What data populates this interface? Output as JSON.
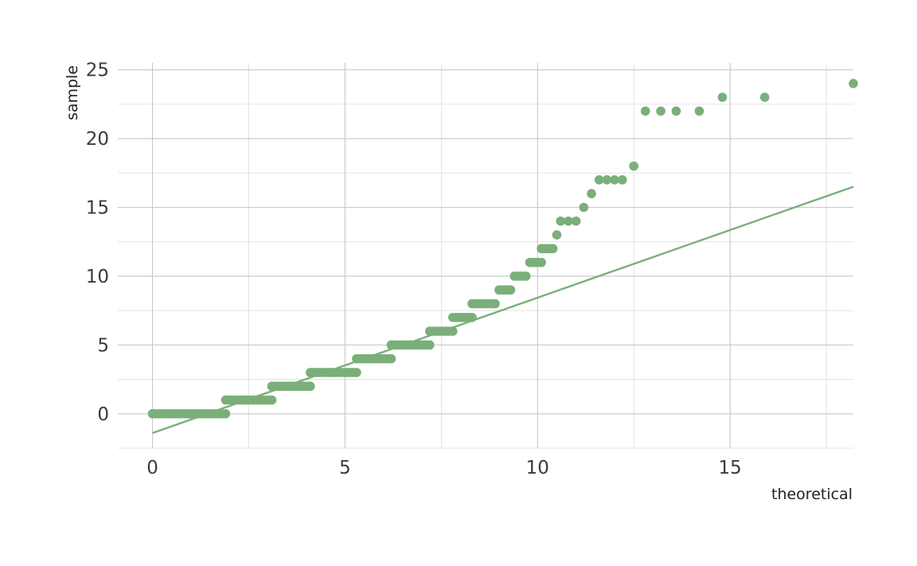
{
  "colors": {
    "series": "#7aaf79",
    "grid_major": "#c8c8c8",
    "grid_minor": "#dcdcdc",
    "text": "#3b3b3b"
  },
  "chart_data": {
    "type": "scatter",
    "title": "",
    "xlabel": "theoretical",
    "ylabel": "sample",
    "xlim": [
      -0.9,
      18.2
    ],
    "ylim": [
      -2.5,
      25.5
    ],
    "x_ticks": [
      0,
      5,
      10,
      15
    ],
    "y_ticks": [
      0,
      5,
      10,
      15,
      20,
      25
    ],
    "grid": true,
    "legend": "none",
    "series": [
      {
        "type": "scatter",
        "runs": [
          {
            "y": 0,
            "x_from": 0.0,
            "x_to": 1.9
          },
          {
            "y": 1,
            "x_from": 1.9,
            "x_to": 3.1
          },
          {
            "y": 2,
            "x_from": 3.1,
            "x_to": 4.1
          },
          {
            "y": 3,
            "x_from": 4.1,
            "x_to": 5.3
          },
          {
            "y": 4,
            "x_from": 5.3,
            "x_to": 6.2
          },
          {
            "y": 5,
            "x_from": 6.2,
            "x_to": 7.2
          },
          {
            "y": 6,
            "x_from": 7.2,
            "x_to": 7.8
          },
          {
            "y": 7,
            "x_from": 7.8,
            "x_to": 8.3
          },
          {
            "y": 8,
            "x_from": 8.3,
            "x_to": 8.9
          },
          {
            "y": 9,
            "x_from": 9.0,
            "x_to": 9.3
          },
          {
            "y": 10,
            "x_from": 9.4,
            "x_to": 9.7
          },
          {
            "y": 11,
            "x_from": 9.8,
            "x_to": 10.1
          },
          {
            "y": 12,
            "x_from": 10.1,
            "x_to": 10.4
          }
        ],
        "points": [
          {
            "x": 10.5,
            "y": 13
          },
          {
            "x": 10.6,
            "y": 14
          },
          {
            "x": 10.8,
            "y": 14
          },
          {
            "x": 11.0,
            "y": 14
          },
          {
            "x": 11.2,
            "y": 15
          },
          {
            "x": 11.4,
            "y": 16
          },
          {
            "x": 11.6,
            "y": 17
          },
          {
            "x": 11.8,
            "y": 17
          },
          {
            "x": 12.0,
            "y": 17
          },
          {
            "x": 12.2,
            "y": 17
          },
          {
            "x": 12.5,
            "y": 18
          },
          {
            "x": 12.8,
            "y": 22
          },
          {
            "x": 13.2,
            "y": 22
          },
          {
            "x": 13.6,
            "y": 22
          },
          {
            "x": 14.2,
            "y": 22
          },
          {
            "x": 14.8,
            "y": 23
          },
          {
            "x": 15.9,
            "y": 23
          },
          {
            "x": 18.2,
            "y": 24
          }
        ]
      },
      {
        "type": "line",
        "points": [
          {
            "x": 0.0,
            "y": -1.4
          },
          {
            "x": 18.2,
            "y": 16.5
          }
        ]
      }
    ]
  }
}
